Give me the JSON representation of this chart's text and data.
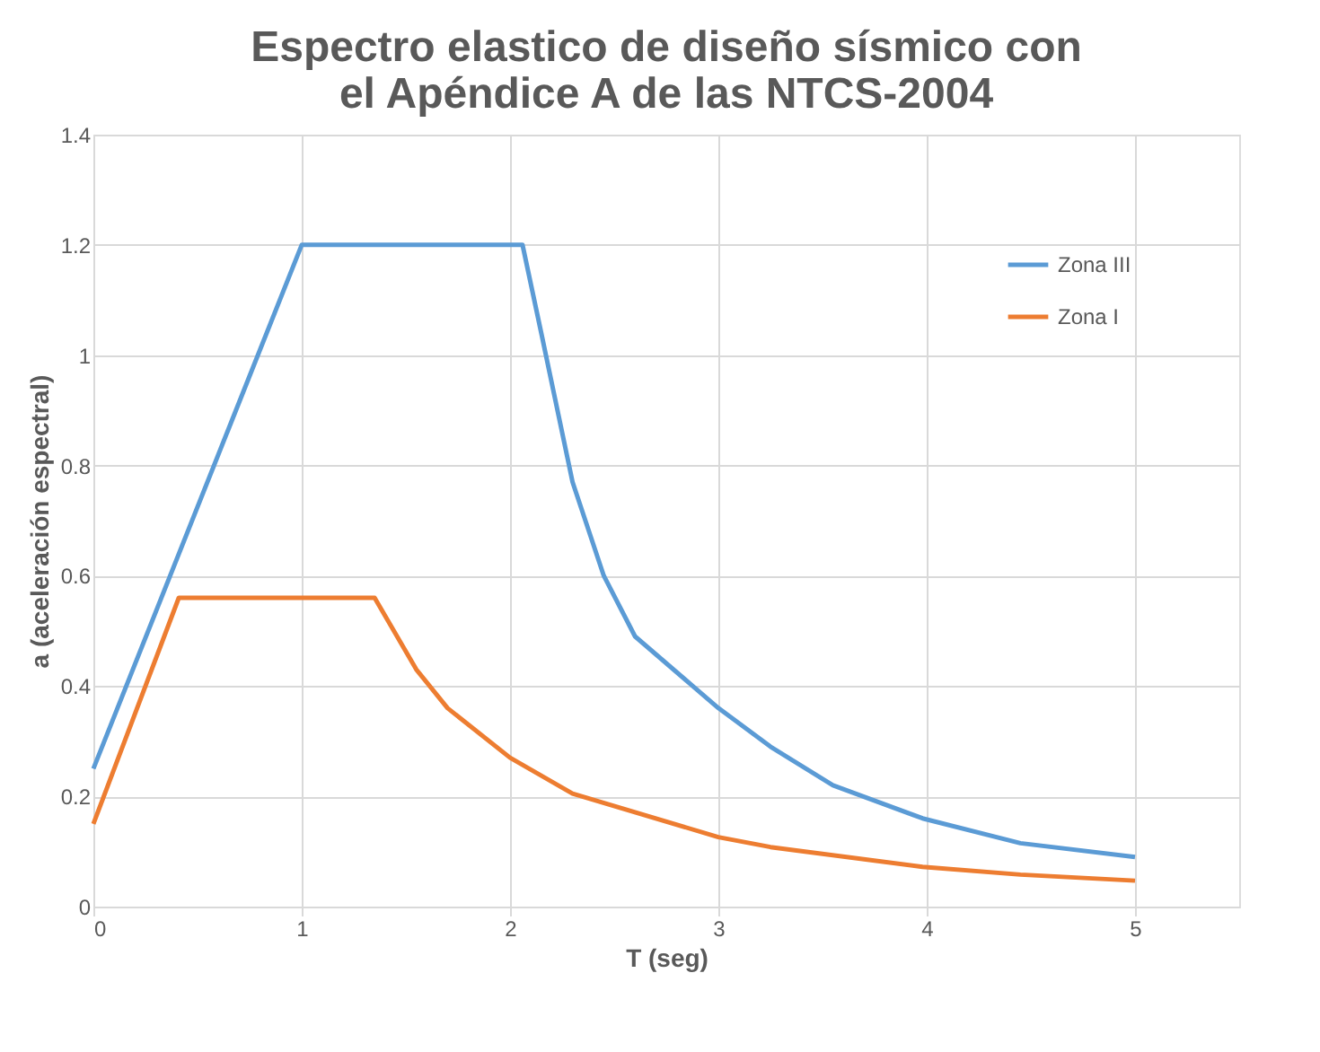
{
  "chart_data": {
    "type": "line",
    "title": [
      "Espectro elastico de diseño sísmico con",
      "el Apéndice A de las NTCS-2004"
    ],
    "xlabel": "T (seg)",
    "ylabel": "a (aceleración espectral)",
    "xlim": [
      0,
      5.5
    ],
    "xticks": [
      0,
      1,
      2,
      3,
      4,
      5
    ],
    "ylim": [
      0,
      1.4
    ],
    "yticks": [
      0,
      0.2,
      0.4,
      0.6,
      0.8,
      1,
      1.2,
      1.4
    ],
    "grid": true,
    "legend": "top right",
    "marker": "none",
    "line_style": "solid",
    "series": [
      {
        "name": "Zona III",
        "color": "#5b9bd5",
        "x": [
          0,
          1.0,
          2.06,
          2.15,
          2.3,
          2.45,
          2.6,
          3.0,
          3.25,
          3.55,
          3.98,
          4.45,
          5.0
        ],
        "values": [
          0.25,
          1.2,
          1.2,
          1.04,
          0.77,
          0.6,
          0.49,
          0.36,
          0.29,
          0.22,
          0.16,
          0.115,
          0.09
        ]
      },
      {
        "name": "Zona I",
        "color": "#ed7d31",
        "x": [
          0,
          0.41,
          1.35,
          1.55,
          1.7,
          2.0,
          2.3,
          3.0,
          3.25,
          3.98,
          4.45,
          5.0
        ],
        "values": [
          0.15,
          0.56,
          0.56,
          0.43,
          0.36,
          0.27,
          0.205,
          0.126,
          0.108,
          0.072,
          0.058,
          0.047
        ]
      }
    ]
  }
}
